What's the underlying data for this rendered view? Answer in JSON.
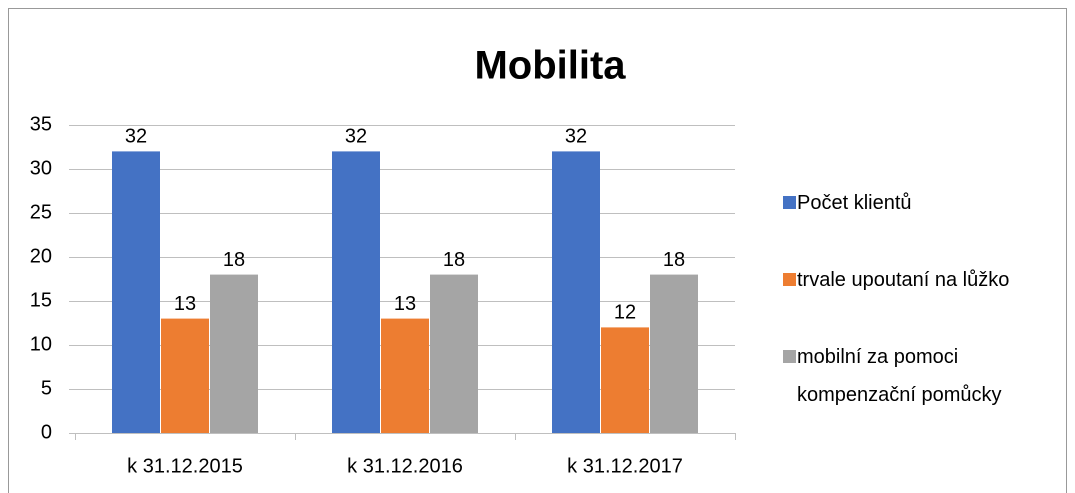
{
  "chart_data": {
    "type": "bar",
    "title": "Mobilita",
    "categories": [
      "k 31.12.2015",
      "k 31.12.2016",
      "k 31.12.2017"
    ],
    "series": [
      {
        "name": "Počet klientů",
        "color": "#4472c4",
        "values": [
          32,
          32,
          32
        ]
      },
      {
        "name": "trvale upoutaní na lůžko",
        "color": "#ed7d31",
        "values": [
          13,
          13,
          12
        ]
      },
      {
        "name": "mobilní za pomoci kompenzační pomůcky",
        "color": "#a5a5a5",
        "values": [
          18,
          18,
          18
        ]
      }
    ],
    "ylim": [
      0,
      35
    ],
    "yticks": [
      0,
      5,
      10,
      15,
      20,
      25,
      30,
      35
    ],
    "grid": true,
    "legend": "right"
  }
}
